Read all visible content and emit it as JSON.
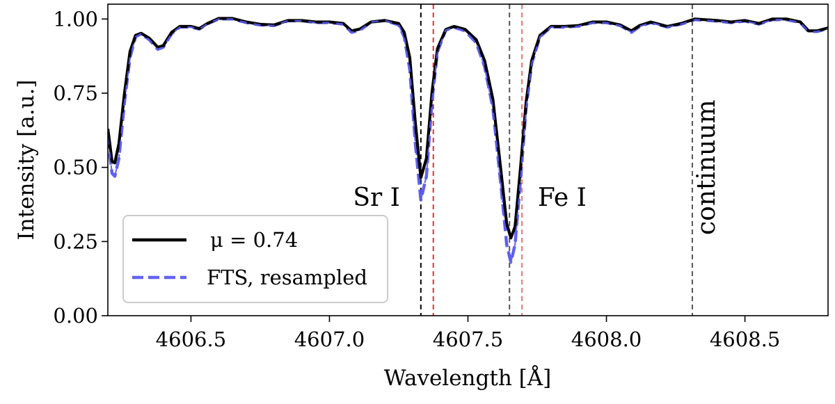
{
  "chart_data": {
    "type": "line",
    "title": "",
    "xlabel": "Wavelength [Å]",
    "ylabel": "Intensity [a.u.]",
    "xlim": [
      4606.2,
      4608.8
    ],
    "ylim": [
      0.0,
      1.05
    ],
    "x_ticks": [
      4606.5,
      4607.0,
      4607.5,
      4608.0,
      4608.5
    ],
    "x_tick_labels": [
      "4606.5",
      "4607.0",
      "4607.5",
      "4608.0",
      "4608.5"
    ],
    "y_ticks": [
      0.0,
      0.25,
      0.5,
      0.75,
      1.0
    ],
    "y_tick_labels": [
      "0.00",
      "0.25",
      "0.50",
      "0.75",
      "1.00"
    ],
    "grid": false,
    "legend_position": "bottom-left",
    "series": [
      {
        "name": "μ = 0.74",
        "style": "solid",
        "color": "#000000",
        "points": [
          [
            4606.2,
            0.63
          ],
          [
            4606.215,
            0.52
          ],
          [
            4606.225,
            0.515
          ],
          [
            4606.24,
            0.58
          ],
          [
            4606.26,
            0.75
          ],
          [
            4606.28,
            0.89
          ],
          [
            4606.3,
            0.945
          ],
          [
            4606.32,
            0.952
          ],
          [
            4606.35,
            0.935
          ],
          [
            4606.38,
            0.905
          ],
          [
            4606.4,
            0.91
          ],
          [
            4606.43,
            0.955
          ],
          [
            4606.46,
            0.975
          ],
          [
            4606.5,
            0.975
          ],
          [
            4606.53,
            0.968
          ],
          [
            4606.56,
            0.985
          ],
          [
            4606.6,
            1.002
          ],
          [
            4606.65,
            1.002
          ],
          [
            4606.7,
            0.99
          ],
          [
            4606.75,
            0.982
          ],
          [
            4606.8,
            0.98
          ],
          [
            4606.85,
            0.995
          ],
          [
            4606.9,
            0.995
          ],
          [
            4606.95,
            0.99
          ],
          [
            4607.0,
            0.99
          ],
          [
            4607.05,
            0.985
          ],
          [
            4607.08,
            0.96
          ],
          [
            4607.11,
            0.966
          ],
          [
            4607.15,
            0.99
          ],
          [
            4607.2,
            0.995
          ],
          [
            4607.25,
            0.985
          ],
          [
            4607.27,
            0.955
          ],
          [
            4607.29,
            0.87
          ],
          [
            4607.31,
            0.65
          ],
          [
            4607.33,
            0.465
          ],
          [
            4607.35,
            0.53
          ],
          [
            4607.37,
            0.75
          ],
          [
            4607.39,
            0.9
          ],
          [
            4607.42,
            0.965
          ],
          [
            4607.45,
            0.975
          ],
          [
            4607.49,
            0.965
          ],
          [
            4607.53,
            0.93
          ],
          [
            4607.56,
            0.86
          ],
          [
            4607.59,
            0.73
          ],
          [
            4607.62,
            0.48
          ],
          [
            4607.64,
            0.31
          ],
          [
            4607.655,
            0.262
          ],
          [
            4607.67,
            0.3
          ],
          [
            4607.69,
            0.5
          ],
          [
            4607.71,
            0.72
          ],
          [
            4607.73,
            0.86
          ],
          [
            4607.76,
            0.945
          ],
          [
            4607.8,
            0.975
          ],
          [
            4607.85,
            0.975
          ],
          [
            4607.9,
            0.978
          ],
          [
            4607.95,
            0.99
          ],
          [
            4608.0,
            0.99
          ],
          [
            4608.05,
            0.98
          ],
          [
            4608.09,
            0.96
          ],
          [
            4608.12,
            0.978
          ],
          [
            4608.16,
            0.99
          ],
          [
            4608.22,
            0.975
          ],
          [
            4608.27,
            0.985
          ],
          [
            4608.32,
            1.0
          ],
          [
            4608.4,
            0.995
          ],
          [
            4608.45,
            0.99
          ],
          [
            4608.5,
            0.995
          ],
          [
            4608.55,
            0.985
          ],
          [
            4608.6,
            1.0
          ],
          [
            4608.65,
            1.0
          ],
          [
            4608.7,
            0.99
          ],
          [
            4608.73,
            0.96
          ],
          [
            4608.76,
            0.96
          ],
          [
            4608.8,
            0.97
          ]
        ]
      },
      {
        "name": "FTS, resampled",
        "style": "dashed",
        "color": "#5b5bf0",
        "points": [
          [
            4606.2,
            0.6
          ],
          [
            4606.215,
            0.48
          ],
          [
            4606.225,
            0.47
          ],
          [
            4606.24,
            0.53
          ],
          [
            4606.26,
            0.72
          ],
          [
            4606.28,
            0.87
          ],
          [
            4606.3,
            0.94
          ],
          [
            4606.32,
            0.95
          ],
          [
            4606.35,
            0.93
          ],
          [
            4606.38,
            0.898
          ],
          [
            4606.4,
            0.905
          ],
          [
            4606.43,
            0.95
          ],
          [
            4606.46,
            0.973
          ],
          [
            4606.5,
            0.973
          ],
          [
            4606.53,
            0.966
          ],
          [
            4606.56,
            0.984
          ],
          [
            4606.6,
            1.0
          ],
          [
            4606.65,
            1.0
          ],
          [
            4606.7,
            0.988
          ],
          [
            4606.75,
            0.98
          ],
          [
            4606.8,
            0.978
          ],
          [
            4606.85,
            0.994
          ],
          [
            4606.9,
            0.994
          ],
          [
            4606.95,
            0.988
          ],
          [
            4607.0,
            0.988
          ],
          [
            4607.05,
            0.983
          ],
          [
            4607.08,
            0.955
          ],
          [
            4607.11,
            0.962
          ],
          [
            4607.15,
            0.99
          ],
          [
            4607.2,
            0.995
          ],
          [
            4607.25,
            0.98
          ],
          [
            4607.27,
            0.94
          ],
          [
            4607.29,
            0.83
          ],
          [
            4607.31,
            0.58
          ],
          [
            4607.33,
            0.39
          ],
          [
            4607.35,
            0.47
          ],
          [
            4607.37,
            0.72
          ],
          [
            4607.39,
            0.89
          ],
          [
            4607.42,
            0.963
          ],
          [
            4607.45,
            0.972
          ],
          [
            4607.49,
            0.96
          ],
          [
            4607.53,
            0.92
          ],
          [
            4607.56,
            0.84
          ],
          [
            4607.59,
            0.7
          ],
          [
            4607.62,
            0.43
          ],
          [
            4607.64,
            0.24
          ],
          [
            4607.655,
            0.18
          ],
          [
            4607.67,
            0.24
          ],
          [
            4607.69,
            0.46
          ],
          [
            4607.71,
            0.7
          ],
          [
            4607.73,
            0.85
          ],
          [
            4607.76,
            0.94
          ],
          [
            4607.8,
            0.973
          ],
          [
            4607.85,
            0.973
          ],
          [
            4607.9,
            0.976
          ],
          [
            4607.95,
            0.988
          ],
          [
            4608.0,
            0.988
          ],
          [
            4608.05,
            0.978
          ],
          [
            4608.09,
            0.955
          ],
          [
            4608.12,
            0.975
          ],
          [
            4608.16,
            0.988
          ],
          [
            4608.22,
            0.973
          ],
          [
            4608.27,
            0.983
          ],
          [
            4608.32,
            0.998
          ],
          [
            4608.4,
            0.993
          ],
          [
            4608.45,
            0.988
          ],
          [
            4608.5,
            0.993
          ],
          [
            4608.55,
            0.983
          ],
          [
            4608.6,
            0.998
          ],
          [
            4608.65,
            0.998
          ],
          [
            4608.7,
            0.988
          ],
          [
            4608.73,
            0.958
          ],
          [
            4608.76,
            0.958
          ],
          [
            4608.8,
            0.968
          ]
        ]
      }
    ],
    "vertical_lines": [
      {
        "x": 4607.33,
        "color": "#000000",
        "style": "dashed"
      },
      {
        "x": 4607.375,
        "color": "#e03030",
        "style": "dashed"
      },
      {
        "x": 4607.65,
        "color": "#555555",
        "style": "dashed"
      },
      {
        "x": 4607.695,
        "color": "#f07070",
        "style": "dashed"
      },
      {
        "x": 4608.31,
        "color": "#555555",
        "style": "dashed"
      }
    ],
    "annotations": [
      {
        "text": "Sr I",
        "x": 4607.17,
        "y": 0.37,
        "rotation": 0
      },
      {
        "text": "Fe I",
        "x": 4607.84,
        "y": 0.37,
        "rotation": 0
      },
      {
        "text": "continuum",
        "x": 4608.39,
        "y": 0.5,
        "rotation": -90
      }
    ]
  }
}
